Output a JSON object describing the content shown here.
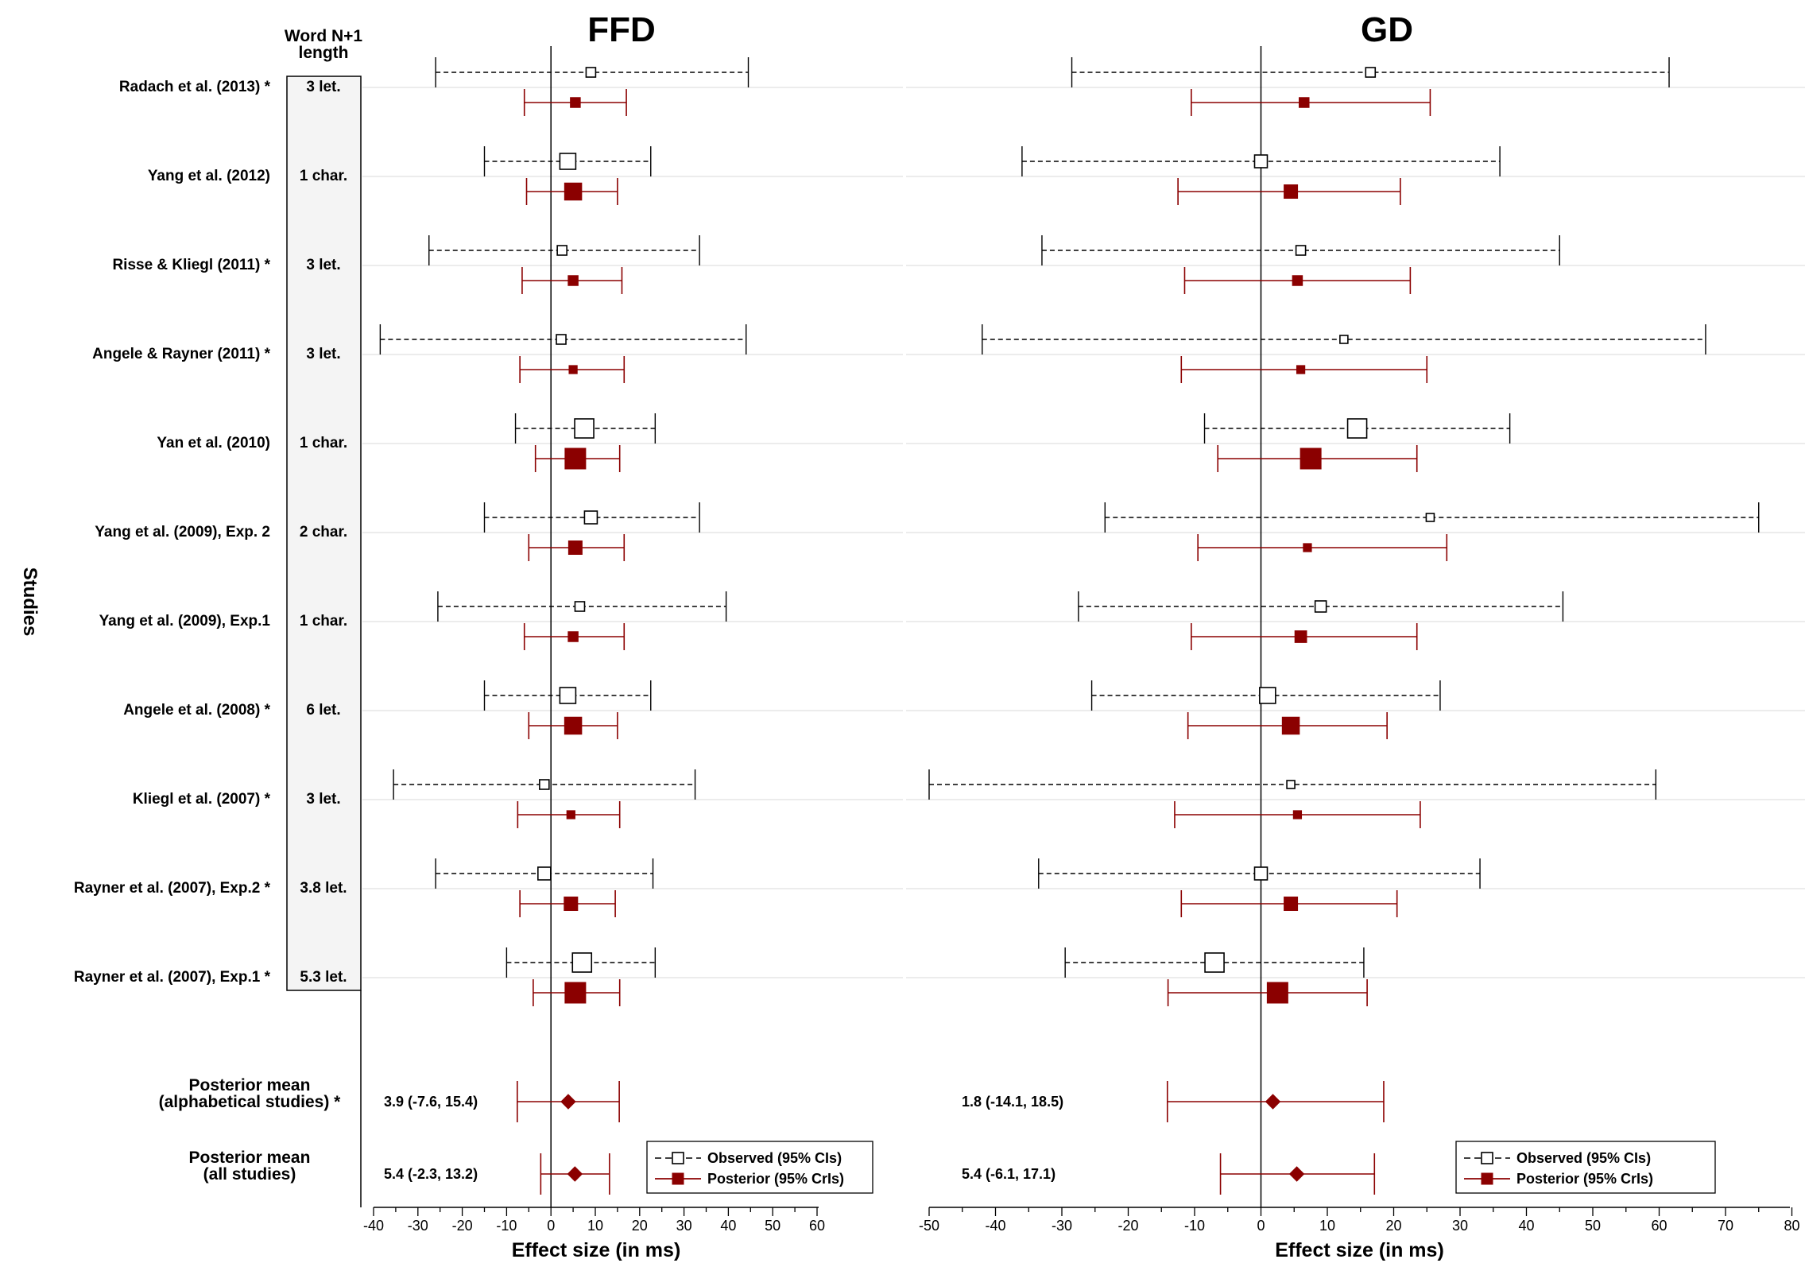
{
  "figure": {
    "y_axis_label": "Studies",
    "length_header": [
      "Word N+1",
      "length"
    ],
    "studies": [
      {
        "name": "Radach et al. (2013) *",
        "length": "3 let."
      },
      {
        "name": "Yang et al. (2012)",
        "length": "1 char."
      },
      {
        "name": "Risse & Kliegl (2011) *",
        "length": "3 let."
      },
      {
        "name": "Angele & Rayner (2011) *",
        "length": "3 let."
      },
      {
        "name": "Yan et al. (2010)",
        "length": "1 char."
      },
      {
        "name": "Yang et al. (2009), Exp. 2",
        "length": "2 char."
      },
      {
        "name": "Yang et al. (2009), Exp.1",
        "length": "1 char."
      },
      {
        "name": "Angele et al. (2008) *",
        "length": "6 let."
      },
      {
        "name": "Kliegl et al. (2007) *",
        "length": "3 let."
      },
      {
        "name": "Rayner et al. (2007), Exp.2 *",
        "length": "3.8 let."
      },
      {
        "name": "Rayner et al. (2007), Exp.1 *",
        "length": "5.3 let."
      }
    ],
    "pooled_labels": [
      [
        "Posterior mean",
        "(alphabetical studies) *"
      ],
      [
        "Posterior mean",
        "(all studies)"
      ]
    ],
    "legend": {
      "observed": "Observed (95% CIs)",
      "posterior": "Posterior (95% CrIs)"
    },
    "colors": {
      "observed": "#000000",
      "posterior": "#8b0000",
      "gridline": "#d9d9d9"
    }
  },
  "chart_data": [
    {
      "type": "forest",
      "title": "FFD",
      "xlabel": "Effect size (in ms)",
      "xlim": [
        -40,
        60
      ],
      "xticks": [
        -40,
        -30,
        -20,
        -10,
        0,
        10,
        20,
        30,
        40,
        50,
        60
      ],
      "observed": [
        {
          "est": 9.0,
          "lo": -26.0,
          "hi": 44.5,
          "weight": 1
        },
        {
          "est": 3.8,
          "lo": -15.0,
          "hi": 22.5,
          "weight": 3
        },
        {
          "est": 2.5,
          "lo": -27.5,
          "hi": 33.5,
          "weight": 1
        },
        {
          "est": 2.3,
          "lo": -38.5,
          "hi": 44.0,
          "weight": 1
        },
        {
          "est": 7.5,
          "lo": -8.0,
          "hi": 23.5,
          "weight": 4
        },
        {
          "est": 9.0,
          "lo": -15.0,
          "hi": 33.5,
          "weight": 2
        },
        {
          "est": 6.5,
          "lo": -25.5,
          "hi": 39.5,
          "weight": 1
        },
        {
          "est": 3.8,
          "lo": -15.0,
          "hi": 22.5,
          "weight": 3
        },
        {
          "est": -1.5,
          "lo": -35.5,
          "hi": 32.5,
          "weight": 1
        },
        {
          "est": -1.5,
          "lo": -26.0,
          "hi": 23.0,
          "weight": 2
        },
        {
          "est": 7.0,
          "lo": -10.0,
          "hi": 23.5,
          "weight": 4
        }
      ],
      "posterior": [
        {
          "est": 5.5,
          "lo": -6.0,
          "hi": 17.0,
          "weight": 1
        },
        {
          "est": 5.0,
          "lo": -5.5,
          "hi": 15.0,
          "weight": 3
        },
        {
          "est": 5.0,
          "lo": -6.5,
          "hi": 16.0,
          "weight": 1
        },
        {
          "est": 5.0,
          "lo": -7.0,
          "hi": 16.5,
          "weight": 0.5
        },
        {
          "est": 5.5,
          "lo": -3.5,
          "hi": 15.5,
          "weight": 4
        },
        {
          "est": 5.5,
          "lo": -5.0,
          "hi": 16.5,
          "weight": 2
        },
        {
          "est": 5.0,
          "lo": -6.0,
          "hi": 16.5,
          "weight": 1
        },
        {
          "est": 5.0,
          "lo": -5.0,
          "hi": 15.0,
          "weight": 3
        },
        {
          "est": 4.5,
          "lo": -7.5,
          "hi": 15.5,
          "weight": 0.5
        },
        {
          "est": 4.5,
          "lo": -7.0,
          "hi": 14.5,
          "weight": 2
        },
        {
          "est": 5.5,
          "lo": -4.0,
          "hi": 15.5,
          "weight": 4
        }
      ],
      "pooled": [
        {
          "est": 3.9,
          "lo": -7.6,
          "hi": 15.4,
          "text": "3.9 (-7.6, 15.4)"
        },
        {
          "est": 5.4,
          "lo": -2.3,
          "hi": 13.2,
          "text": "5.4 (-2.3, 13.2)"
        }
      ]
    },
    {
      "type": "forest",
      "title": "GD",
      "xlabel": "Effect size (in ms)",
      "xlim": [
        -50,
        80
      ],
      "xticks": [
        -50,
        -40,
        -30,
        -20,
        -10,
        0,
        10,
        20,
        30,
        40,
        50,
        60,
        70,
        80
      ],
      "observed": [
        {
          "est": 16.5,
          "lo": -28.5,
          "hi": 61.5,
          "weight": 1
        },
        {
          "est": 0.0,
          "lo": -36.0,
          "hi": 36.0,
          "weight": 2
        },
        {
          "est": 6.0,
          "lo": -33.0,
          "hi": 45.0,
          "weight": 1
        },
        {
          "est": 12.5,
          "lo": -42.0,
          "hi": 67.0,
          "weight": 0.5
        },
        {
          "est": 14.5,
          "lo": -8.5,
          "hi": 37.5,
          "weight": 4
        },
        {
          "est": 25.5,
          "lo": -23.5,
          "hi": 75.0,
          "weight": 0.5
        },
        {
          "est": 9.0,
          "lo": -27.5,
          "hi": 45.5,
          "weight": 1.5
        },
        {
          "est": 1.0,
          "lo": -25.5,
          "hi": 27.0,
          "weight": 3
        },
        {
          "est": 4.5,
          "lo": -50.0,
          "hi": 59.5,
          "weight": 0.5
        },
        {
          "est": 0.0,
          "lo": -33.5,
          "hi": 33.0,
          "weight": 2
        },
        {
          "est": -7.0,
          "lo": -29.5,
          "hi": 15.5,
          "weight": 4
        }
      ],
      "posterior": [
        {
          "est": 6.5,
          "lo": -10.5,
          "hi": 25.5,
          "weight": 1
        },
        {
          "est": 4.5,
          "lo": -12.5,
          "hi": 21.0,
          "weight": 2
        },
        {
          "est": 5.5,
          "lo": -11.5,
          "hi": 22.5,
          "weight": 1
        },
        {
          "est": 6.0,
          "lo": -12.0,
          "hi": 25.0,
          "weight": 0.5
        },
        {
          "est": 7.5,
          "lo": -6.5,
          "hi": 23.5,
          "weight": 4
        },
        {
          "est": 7.0,
          "lo": -9.5,
          "hi": 28.0,
          "weight": 0.5
        },
        {
          "est": 6.0,
          "lo": -10.5,
          "hi": 23.5,
          "weight": 1.5
        },
        {
          "est": 4.5,
          "lo": -11.0,
          "hi": 19.0,
          "weight": 3
        },
        {
          "est": 5.5,
          "lo": -13.0,
          "hi": 24.0,
          "weight": 0.5
        },
        {
          "est": 4.5,
          "lo": -12.0,
          "hi": 20.5,
          "weight": 2
        },
        {
          "est": 2.5,
          "lo": -14.0,
          "hi": 16.0,
          "weight": 4
        }
      ],
      "pooled": [
        {
          "est": 1.8,
          "lo": -14.1,
          "hi": 18.5,
          "text": "1.8 (-14.1, 18.5)"
        },
        {
          "est": 5.4,
          "lo": -6.1,
          "hi": 17.1,
          "text": "5.4 (-6.1, 17.1)"
        }
      ]
    }
  ]
}
